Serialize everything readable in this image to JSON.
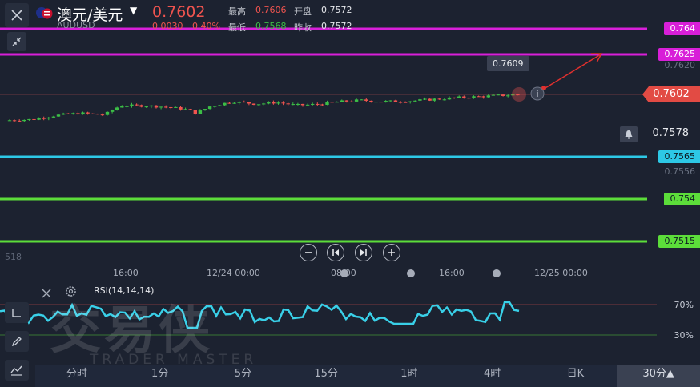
{
  "header": {
    "pair_name": "澳元/美元",
    "pair_code": "AUDUSD",
    "last_price": "0.7602",
    "change": "0.0030",
    "change_pct": "0.40%",
    "high_label": "最高",
    "high_value": "0.7606",
    "low_label": "最低",
    "low_value": "0.7568",
    "open_label": "开盘",
    "open_value": "0.7572",
    "prev_close_label": "昨收",
    "prev_close_value": "0.7572"
  },
  "price_levels": {
    "magenta_top": "0.764",
    "magenta_2": "0.7625",
    "axis_7620": "0.7620",
    "current": "0.7602",
    "alert": "0.7578",
    "cyan": "0.7565",
    "axis_7556": "0.7556",
    "green_1": "0.754",
    "green_2": "0.7515"
  },
  "annotations": {
    "peak_label": "0.7609",
    "left_edge_value": "518"
  },
  "time_axis": [
    "16:00",
    "12/24 00:00",
    "08:00",
    "16:00",
    "12/25 00:00"
  ],
  "indicator": {
    "name": "RSI(14,14,14)",
    "level_high": "70%",
    "level_low": "30%"
  },
  "watermark": {
    "brand_cn": "交易侠",
    "brand_en": "TRADER MASTER"
  },
  "tabs": [
    "分时",
    "1分",
    "5分",
    "15分",
    "1时",
    "4时",
    "日K",
    "30分▲"
  ],
  "colors": {
    "background": "#1c2230",
    "up": "#3cbe46",
    "down": "#f0544f",
    "magenta": "#d81fd8",
    "cyan": "#2dc8e6",
    "green_line": "#5cdd3a",
    "rsi_line": "#39d0e8"
  },
  "chart_data": {
    "type": "candlestick",
    "ylim": [
      0.75,
      0.765
    ],
    "horizontal_lines": [
      0.764,
      0.7625,
      0.7565,
      0.754,
      0.7515
    ],
    "current_price": 0.7602,
    "rsi_levels": [
      70,
      30
    ]
  }
}
